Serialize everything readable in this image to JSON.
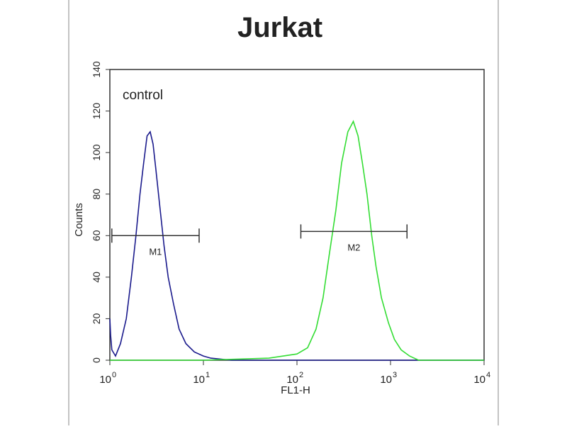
{
  "chart_data": {
    "type": "line",
    "title": "Jurkat",
    "annotation": "control",
    "xlabel": "FL1-H",
    "ylabel": "Counts",
    "xscale": "log",
    "xlim": [
      1,
      10000
    ],
    "xticks": [
      {
        "value": 1,
        "label": "10",
        "exponent": "0"
      },
      {
        "value": 10,
        "label": "10",
        "exponent": "1"
      },
      {
        "value": 100,
        "label": "10",
        "exponent": "2"
      },
      {
        "value": 1000,
        "label": "10",
        "exponent": "3"
      },
      {
        "value": 10000,
        "label": "10",
        "exponent": "4"
      }
    ],
    "ylim": [
      0,
      140
    ],
    "yticks": [
      0,
      20,
      40,
      60,
      80,
      100,
      120,
      140
    ],
    "series": [
      {
        "color": "#1a1a8c",
        "x": [
          1.0,
          1.02,
          1.05,
          1.15,
          1.3,
          1.5,
          1.7,
          1.9,
          2.1,
          2.3,
          2.5,
          2.7,
          2.9,
          3.1,
          3.4,
          3.8,
          4.2,
          4.8,
          5.5,
          6.5,
          8,
          10,
          12,
          20,
          100,
          1000,
          10000
        ],
        "values": [
          20,
          12,
          5,
          2,
          8,
          20,
          40,
          60,
          80,
          95,
          108,
          110,
          104,
          92,
          75,
          55,
          40,
          27,
          15,
          8,
          4,
          2,
          1,
          0,
          0,
          0,
          0
        ]
      },
      {
        "color": "#33dd33",
        "x": [
          1,
          10,
          50,
          100,
          130,
          160,
          190,
          220,
          260,
          300,
          350,
          400,
          450,
          500,
          560,
          630,
          700,
          800,
          950,
          1100,
          1300,
          1600,
          2000,
          10000
        ],
        "values": [
          0,
          0,
          1,
          3,
          6,
          15,
          30,
          50,
          72,
          95,
          110,
          115,
          108,
          95,
          80,
          60,
          45,
          30,
          18,
          10,
          5,
          2,
          0,
          0
        ]
      }
    ],
    "gates": [
      {
        "label": "M1",
        "x": [
          1.05,
          9
        ],
        "y": 60
      },
      {
        "label": "M2",
        "x": [
          110,
          1500
        ],
        "y": 62
      }
    ]
  }
}
